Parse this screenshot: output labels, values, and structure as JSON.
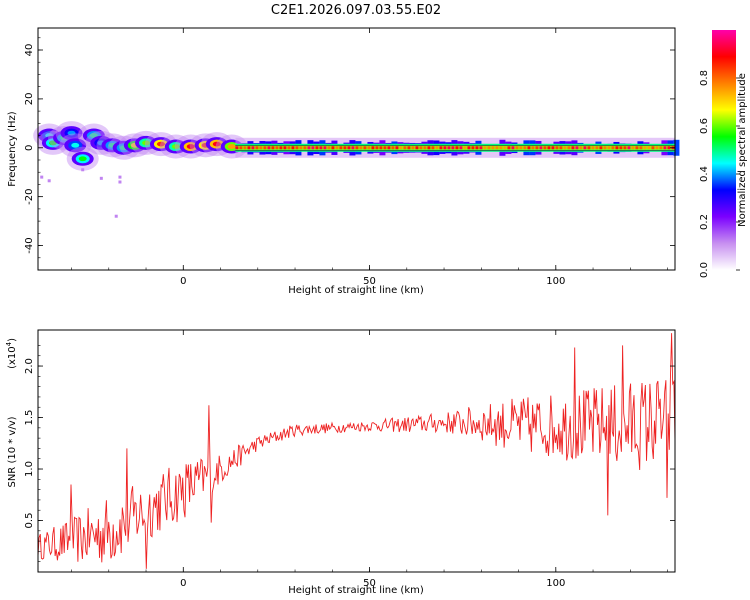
{
  "title": "C2E1.2026.097.03.55.E02",
  "chart_data": [
    {
      "type": "heatmap",
      "xlabel": "Height of straight line (km)",
      "ylabel": "Frequency (Hz)",
      "xlim": [
        -39,
        132
      ],
      "ylim": [
        -50,
        49
      ],
      "x_ticks": [
        0,
        50,
        100
      ],
      "y_ticks": [
        -40,
        -20,
        0,
        20,
        40
      ],
      "colorbar": {
        "label": "Normalized spectral amplitude",
        "range": [
          0,
          1
        ],
        "ticks": [
          0.0,
          0.2,
          0.4,
          0.6,
          0.8
        ],
        "colors": [
          "#ffffff",
          "#c78ff0",
          "#7b00ff",
          "#0000ff",
          "#00ffff",
          "#00ff00",
          "#ffff00",
          "#ff8000",
          "#ff0000",
          "#ff00aa"
        ]
      },
      "blobs": [
        {
          "x": -36.0,
          "f": 5.0,
          "a": 0.45
        },
        {
          "x": -35.0,
          "f": 2.0,
          "a": 0.55
        },
        {
          "x": -32.0,
          "f": 4.0,
          "a": 0.5
        },
        {
          "x": -30.0,
          "f": 6.0,
          "a": 0.4
        },
        {
          "x": -29.0,
          "f": 1.0,
          "a": 0.45
        },
        {
          "x": -27.0,
          "f": -4.5,
          "a": 0.55
        },
        {
          "x": -24.0,
          "f": 5.0,
          "a": 0.5
        },
        {
          "x": -22.0,
          "f": 2.0,
          "a": 0.4
        },
        {
          "x": -19.0,
          "f": 1.0,
          "a": 0.5
        },
        {
          "x": -16.0,
          "f": 0.0,
          "a": 0.5
        },
        {
          "x": -13.0,
          "f": 1.0,
          "a": 0.7
        },
        {
          "x": -10.0,
          "f": 2.0,
          "a": 0.6
        },
        {
          "x": -6.0,
          "f": 1.5,
          "a": 0.85
        },
        {
          "x": -2.0,
          "f": 0.5,
          "a": 0.6
        },
        {
          "x": 2.0,
          "f": 0.5,
          "a": 0.9
        },
        {
          "x": 6.0,
          "f": 1.0,
          "a": 0.85
        },
        {
          "x": 9.0,
          "f": 1.5,
          "a": 0.9
        },
        {
          "x": 13.0,
          "f": 0.5,
          "a": 0.75
        }
      ],
      "ridge": {
        "x_start": 14,
        "x_end": 132,
        "f": 0.0,
        "a": 0.95
      },
      "outliers": [
        {
          "x": -38.0,
          "f": -12.0
        },
        {
          "x": -36.0,
          "f": -13.5
        },
        {
          "x": -27.0,
          "f": -9.0
        },
        {
          "x": -22.0,
          "f": -12.5
        },
        {
          "x": -17.0,
          "f": -12.0
        },
        {
          "x": -17.0,
          "f": -14.0
        },
        {
          "x": -18.0,
          "f": -28.0
        }
      ]
    },
    {
      "type": "line",
      "xlabel": "Height of straight line (km)",
      "ylabel": "SNR (10 * v/v)",
      "y_multiplier": "(x10",
      "y_multiplier_exp": "4",
      "xlim": [
        -39,
        132
      ],
      "ylim": [
        0.0,
        2.35
      ],
      "x_ticks": [
        0,
        50,
        100
      ],
      "y_ticks": [
        0.5,
        1.0,
        1.5,
        2.0
      ],
      "y_tick_labels": [
        "0.5",
        "1.0",
        "1.5",
        "2.0"
      ],
      "color": "#ee2222",
      "envelope": [
        {
          "x": -39,
          "mean": 0.25,
          "amp": 0.12
        },
        {
          "x": -30,
          "mean": 0.3,
          "amp": 0.22
        },
        {
          "x": -20,
          "mean": 0.4,
          "amp": 0.35
        },
        {
          "x": -10,
          "mean": 0.6,
          "amp": 0.3
        },
        {
          "x": 0,
          "mean": 0.8,
          "amp": 0.3
        },
        {
          "x": 10,
          "mean": 1.0,
          "amp": 0.15
        },
        {
          "x": 20,
          "mean": 1.25,
          "amp": 0.07
        },
        {
          "x": 30,
          "mean": 1.38,
          "amp": 0.06
        },
        {
          "x": 40,
          "mean": 1.4,
          "amp": 0.05
        },
        {
          "x": 50,
          "mean": 1.42,
          "amp": 0.05
        },
        {
          "x": 60,
          "mean": 1.43,
          "amp": 0.08
        },
        {
          "x": 70,
          "mean": 1.45,
          "amp": 0.1
        },
        {
          "x": 80,
          "mean": 1.45,
          "amp": 0.18
        },
        {
          "x": 90,
          "mean": 1.42,
          "amp": 0.28
        },
        {
          "x": 100,
          "mean": 1.42,
          "amp": 0.32
        },
        {
          "x": 110,
          "mean": 1.42,
          "amp": 0.38
        },
        {
          "x": 120,
          "mean": 1.42,
          "amp": 0.45
        },
        {
          "x": 132,
          "mean": 1.5,
          "amp": 0.45
        }
      ],
      "peaks": [
        {
          "x": 7.0,
          "y": 1.62
        },
        {
          "x": -15.0,
          "y": 1.2
        },
        {
          "x": -30.0,
          "y": 0.85
        },
        {
          "x": -10.0,
          "y": 0.03
        },
        {
          "x": 7.5,
          "y": 0.48
        },
        {
          "x": 131.0,
          "y": 2.32
        },
        {
          "x": 118.0,
          "y": 2.2
        },
        {
          "x": 105.0,
          "y": 2.18
        },
        {
          "x": 114.0,
          "y": 0.55
        },
        {
          "x": 130.0,
          "y": 0.72
        }
      ],
      "samples": 560
    }
  ]
}
